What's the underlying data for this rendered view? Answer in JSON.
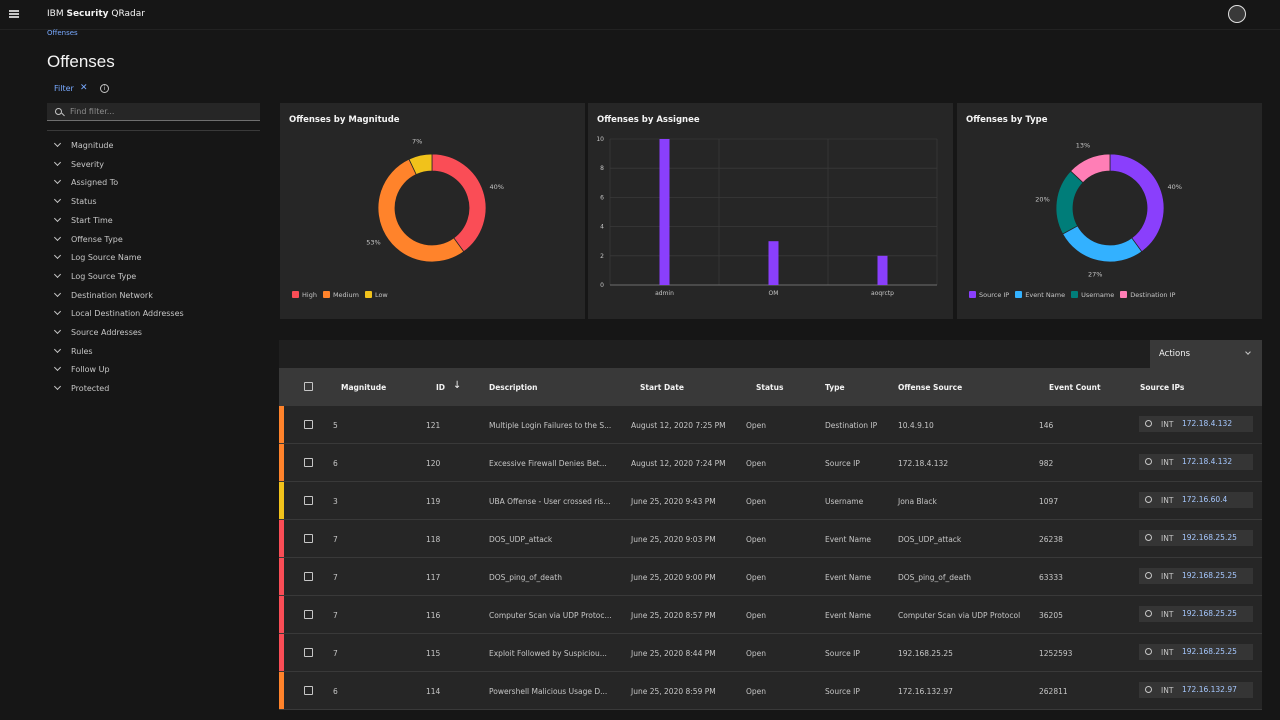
{
  "header": {
    "brand_prefix": "IBM ",
    "brand_bold": "Security",
    "brand_suffix": " QRadar"
  },
  "breadcrumb": "Offenses",
  "page_title": "Offenses",
  "filter": {
    "label": "Filter",
    "clear": "✕",
    "info": "i",
    "search_placeholder": "Find filter..."
  },
  "filters": [
    "Magnitude",
    "Severity",
    "Assigned To",
    "Status",
    "Start Time",
    "Offense Type",
    "Log Source Name",
    "Log Source Type",
    "Destination Network",
    "Local Destination Addresses",
    "Source Addresses",
    "Rules",
    "Follow Up",
    "Protected"
  ],
  "chart_data": [
    {
      "type": "pie",
      "title": "Offenses by Magnitude",
      "donut": true,
      "categories": [
        "High",
        "Medium",
        "Low"
      ],
      "values": [
        40,
        53,
        7
      ],
      "labels": [
        "40%",
        "53%",
        "7%"
      ],
      "colors": [
        "#fa4d56",
        "#ff832b",
        "#f1c21b"
      ],
      "legend": "bottom-left"
    },
    {
      "type": "bar",
      "title": "Offenses by Assignee",
      "categories": [
        "admin",
        "OM",
        "aoqrctp"
      ],
      "values": [
        10,
        3,
        2
      ],
      "ylim": [
        0,
        10
      ],
      "yticks": [
        "0",
        "2",
        "4",
        "6",
        "8",
        "10"
      ],
      "grid": true,
      "color": "#8a3ffc"
    },
    {
      "type": "pie",
      "title": "Offenses by Type",
      "donut": true,
      "categories": [
        "Source IP",
        "Event Name",
        "Username",
        "Destination IP"
      ],
      "values": [
        40,
        27,
        20,
        13
      ],
      "labels": [
        "40%",
        "27%",
        "20%",
        "13%"
      ],
      "colors": [
        "#8a3ffc",
        "#33b1ff",
        "#007d79",
        "#ff7eb6"
      ],
      "legend": "bottom-left"
    }
  ],
  "table": {
    "actions_label": "Actions",
    "columns": [
      "Magnitude",
      "ID",
      "Description",
      "Start Date",
      "Status",
      "Type",
      "Offense Source",
      "Event Count",
      "Source IPs"
    ],
    "sort_icon": "↓",
    "rows": [
      {
        "mag": "5",
        "id": "121",
        "desc": "Multiple Login Failures to the S...",
        "date": "August 12, 2020 7:25 PM",
        "status": "Open",
        "type": "Destination IP",
        "source": "10.4.9.10",
        "count": "146",
        "ip_tag": "INT",
        "ip": "172.18.4.132",
        "color": "#ff832b"
      },
      {
        "mag": "6",
        "id": "120",
        "desc": "Excessive Firewall Denies Bet...",
        "date": "August 12, 2020 7:24 PM",
        "status": "Open",
        "type": "Source IP",
        "source": "172.18.4.132",
        "count": "982",
        "ip_tag": "INT",
        "ip": "172.18.4.132",
        "color": "#ff832b"
      },
      {
        "mag": "3",
        "id": "119",
        "desc": "UBA Offense - User crossed ris...",
        "date": "June 25, 2020 9:43 PM",
        "status": "Open",
        "type": "Username",
        "source": "Jona Black",
        "count": "1097",
        "ip_tag": "INT",
        "ip": "172.16.60.4",
        "color": "#f1c21b"
      },
      {
        "mag": "7",
        "id": "118",
        "desc": "DOS_UDP_attack",
        "date": "June 25, 2020 9:03 PM",
        "status": "Open",
        "type": "Event Name",
        "source": "DOS_UDP_attack",
        "count": "26238",
        "ip_tag": "INT",
        "ip": "192.168.25.25",
        "color": "#fa4d56"
      },
      {
        "mag": "7",
        "id": "117",
        "desc": "DOS_ping_of_death",
        "date": "June 25, 2020 9:00 PM",
        "status": "Open",
        "type": "Event Name",
        "source": "DOS_ping_of_death",
        "count": "63333",
        "ip_tag": "INT",
        "ip": "192.168.25.25",
        "color": "#fa4d56"
      },
      {
        "mag": "7",
        "id": "116",
        "desc": "Computer Scan via UDP Protoc...",
        "date": "June 25, 2020 8:57 PM",
        "status": "Open",
        "type": "Event Name",
        "source": "Computer Scan via UDP Protocol",
        "count": "36205",
        "ip_tag": "INT",
        "ip": "192.168.25.25",
        "color": "#fa4d56"
      },
      {
        "mag": "7",
        "id": "115",
        "desc": "Exploit Followed by Suspiciou...",
        "date": "June 25, 2020 8:44 PM",
        "status": "Open",
        "type": "Source IP",
        "source": "192.168.25.25",
        "count": "1252593",
        "ip_tag": "INT",
        "ip": "192.168.25.25",
        "color": "#fa4d56"
      },
      {
        "mag": "6",
        "id": "114",
        "desc": "Powershell Malicious Usage D...",
        "date": "June 25, 2020 8:59 PM",
        "status": "Open",
        "type": "Source IP",
        "source": "172.16.132.97",
        "count": "262811",
        "ip_tag": "INT",
        "ip": "172.16.132.97",
        "color": "#ff832b"
      }
    ]
  }
}
